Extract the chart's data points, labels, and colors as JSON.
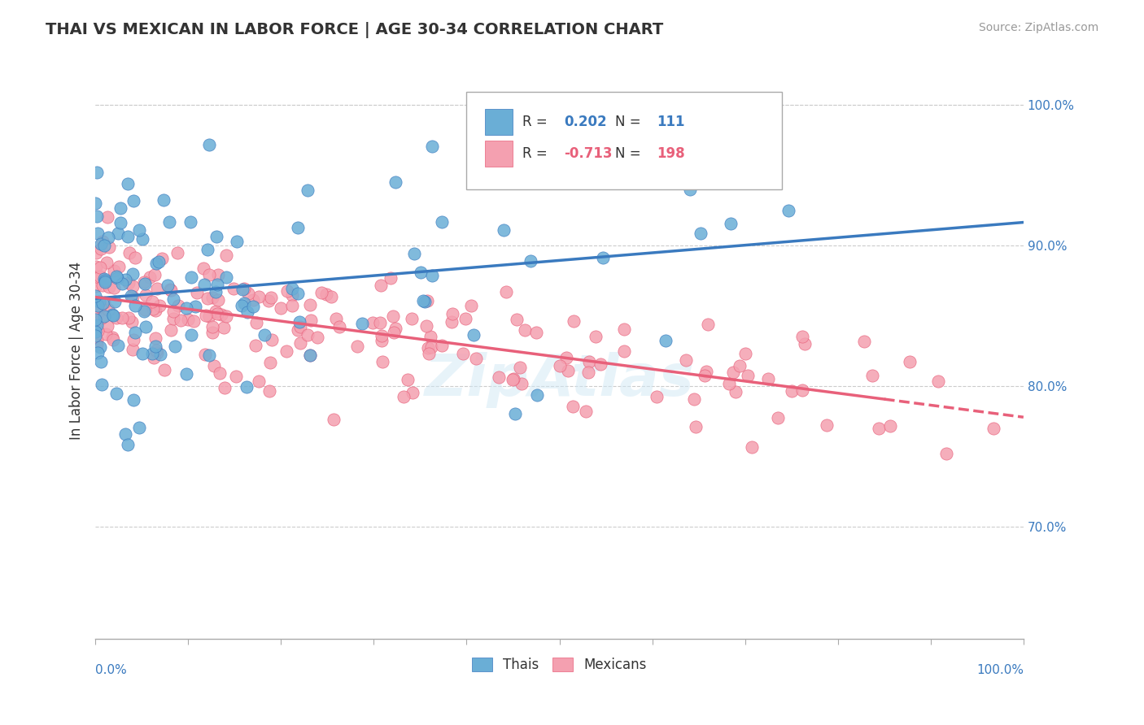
{
  "title": "THAI VS MEXICAN IN LABOR FORCE | AGE 30-34 CORRELATION CHART",
  "source": "Source: ZipAtlas.com",
  "ylabel": "In Labor Force | Age 30-34",
  "xlabel": "",
  "xlim": [
    0.0,
    1.0
  ],
  "ylim": [
    0.62,
    1.03
  ],
  "yticks": [
    0.7,
    0.8,
    0.9,
    1.0
  ],
  "ytick_labels": [
    "70.0%",
    "80.0%",
    "90.0%",
    "100.0%"
  ],
  "xtick_labels": [
    "0.0%",
    "100.0%"
  ],
  "legend_r_thai": "0.202",
  "legend_n_thai": "111",
  "legend_r_mex": "-0.713",
  "legend_n_mex": "198",
  "thai_color": "#6aaed6",
  "mex_color": "#f4a0b0",
  "thai_line_color": "#3a7abf",
  "mex_line_color": "#e8607a",
  "watermark": "ZipAtlas",
  "background_color": "#ffffff",
  "grid_color": "#cccccc",
  "title_color": "#333333",
  "source_color": "#999999",
  "thai_scatter_seed": 42,
  "mex_scatter_seed": 7,
  "thai_n": 111,
  "mex_n": 198,
  "thai_r": 0.202,
  "mex_r": -0.713
}
